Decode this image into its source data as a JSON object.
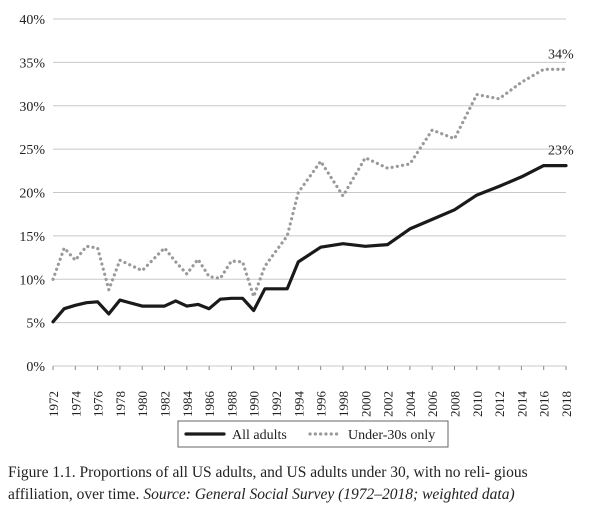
{
  "chart_data": {
    "type": "line",
    "title": "",
    "xlabel": "",
    "ylabel": "",
    "x": [
      1972,
      1973,
      1974,
      1975,
      1976,
      1977,
      1978,
      1980,
      1982,
      1983,
      1984,
      1985,
      1986,
      1987,
      1988,
      1989,
      1990,
      1991,
      1993,
      1994,
      1996,
      1998,
      2000,
      2002,
      2004,
      2006,
      2008,
      2010,
      2012,
      2014,
      2016,
      2018
    ],
    "ylim": [
      0,
      40
    ],
    "yticks": [
      "0%",
      "5%",
      "10%",
      "15%",
      "20%",
      "25%",
      "30%",
      "35%",
      "40%"
    ],
    "xticks": [
      "1972",
      "1974",
      "1976",
      "1978",
      "1980",
      "1982",
      "1984",
      "1986",
      "1988",
      "1990",
      "1992",
      "1994",
      "1996",
      "1998",
      "2000",
      "2002",
      "2004",
      "2006",
      "2008",
      "2010",
      "2012",
      "2014",
      "2016",
      "2018"
    ],
    "grid": "horizontal",
    "legend_position": "bottom",
    "series": [
      {
        "name": "All adults",
        "style": "solid",
        "color": "#1a1a1a",
        "values": [
          5.1,
          6.6,
          7.0,
          7.3,
          7.4,
          6.0,
          7.6,
          6.9,
          6.9,
          7.5,
          6.9,
          7.1,
          6.6,
          7.7,
          7.8,
          7.8,
          6.4,
          8.9,
          8.9,
          12.0,
          13.7,
          14.1,
          13.8,
          14.0,
          15.8,
          16.9,
          18.0,
          19.7,
          20.7,
          21.8,
          23.1,
          23.1
        ],
        "end_label": "23%"
      },
      {
        "name": "Under-30s only",
        "style": "dotted",
        "color": "#9a9a9a",
        "values": [
          10.0,
          13.6,
          12.2,
          13.8,
          13.6,
          8.8,
          12.2,
          11.0,
          13.6,
          12.0,
          10.6,
          12.3,
          10.3,
          10.1,
          12.1,
          12.0,
          8.0,
          11.5,
          15.0,
          20.0,
          23.6,
          19.6,
          24.0,
          22.8,
          23.3,
          27.2,
          26.2,
          31.3,
          30.8,
          32.7,
          34.2,
          34.2
        ],
        "end_label": "34%"
      }
    ]
  },
  "caption": {
    "main": "Figure 1.1.  Proportions of all US adults, and US adults under 30, with no reli- gious affiliation, over time.",
    "source": "Source: General Social Survey (1972–2018; weighted data)"
  }
}
